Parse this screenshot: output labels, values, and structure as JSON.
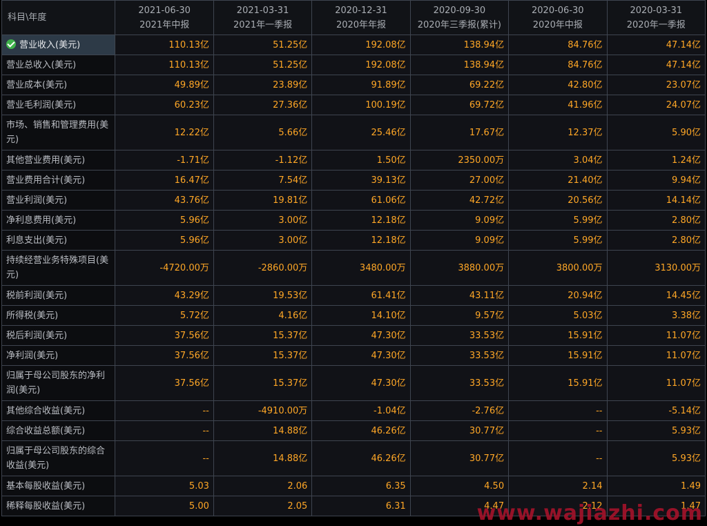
{
  "table": {
    "corner_label": "科目\\年度",
    "columns": [
      {
        "date": "2021-06-30",
        "period": "2021年中报"
      },
      {
        "date": "2021-03-31",
        "period": "2021年一季报"
      },
      {
        "date": "2020-12-31",
        "period": "2020年年报"
      },
      {
        "date": "2020-09-30",
        "period": "2020年三季报(累计)"
      },
      {
        "date": "2020-06-30",
        "period": "2020年中报"
      },
      {
        "date": "2020-03-31",
        "period": "2020年一季报"
      }
    ],
    "rows": [
      {
        "label": "营业收入(美元)",
        "values": [
          "110.13亿",
          "51.25亿",
          "192.08亿",
          "138.94亿",
          "84.76亿",
          "47.14亿"
        ]
      },
      {
        "label": "营业总收入(美元)",
        "values": [
          "110.13亿",
          "51.25亿",
          "192.08亿",
          "138.94亿",
          "84.76亿",
          "47.14亿"
        ]
      },
      {
        "label": "营业成本(美元)",
        "values": [
          "49.89亿",
          "23.89亿",
          "91.89亿",
          "69.22亿",
          "42.80亿",
          "23.07亿"
        ]
      },
      {
        "label": "营业毛利润(美元)",
        "values": [
          "60.23亿",
          "27.36亿",
          "100.19亿",
          "69.72亿",
          "41.96亿",
          "24.07亿"
        ]
      },
      {
        "label": "市场、销售和管理费用(美元)",
        "values": [
          "12.22亿",
          "5.66亿",
          "25.46亿",
          "17.67亿",
          "12.37亿",
          "5.90亿"
        ]
      },
      {
        "label": "其他营业费用(美元)",
        "values": [
          "-1.71亿",
          "-1.12亿",
          "1.50亿",
          "2350.00万",
          "3.04亿",
          "1.24亿"
        ]
      },
      {
        "label": "营业费用合计(美元)",
        "values": [
          "16.47亿",
          "7.54亿",
          "39.13亿",
          "27.00亿",
          "21.40亿",
          "9.94亿"
        ]
      },
      {
        "label": "营业利润(美元)",
        "values": [
          "43.76亿",
          "19.81亿",
          "61.06亿",
          "42.72亿",
          "20.56亿",
          "14.14亿"
        ]
      },
      {
        "label": "净利息费用(美元)",
        "values": [
          "5.96亿",
          "3.00亿",
          "12.18亿",
          "9.09亿",
          "5.99亿",
          "2.80亿"
        ]
      },
      {
        "label": "利息支出(美元)",
        "values": [
          "5.96亿",
          "3.00亿",
          "12.18亿",
          "9.09亿",
          "5.99亿",
          "2.80亿"
        ]
      },
      {
        "label": "持续经营业务特殊项目(美元)",
        "values": [
          "-4720.00万",
          "-2860.00万",
          "3480.00万",
          "3880.00万",
          "3800.00万",
          "3130.00万"
        ]
      },
      {
        "label": "税前利润(美元)",
        "values": [
          "43.29亿",
          "19.53亿",
          "61.41亿",
          "43.11亿",
          "20.94亿",
          "14.45亿"
        ]
      },
      {
        "label": "所得税(美元)",
        "values": [
          "5.72亿",
          "4.16亿",
          "14.10亿",
          "9.57亿",
          "5.03亿",
          "3.38亿"
        ]
      },
      {
        "label": "税后利润(美元)",
        "values": [
          "37.56亿",
          "15.37亿",
          "47.30亿",
          "33.53亿",
          "15.91亿",
          "11.07亿"
        ]
      },
      {
        "label": "净利润(美元)",
        "values": [
          "37.56亿",
          "15.37亿",
          "47.30亿",
          "33.53亿",
          "15.91亿",
          "11.07亿"
        ]
      },
      {
        "label": "归属于母公司股东的净利润(美元)",
        "values": [
          "37.56亿",
          "15.37亿",
          "47.30亿",
          "33.53亿",
          "15.91亿",
          "11.07亿"
        ]
      },
      {
        "label": "其他综合收益(美元)",
        "values": [
          "--",
          "-4910.00万",
          "-1.04亿",
          "-2.76亿",
          "--",
          "-5.14亿"
        ]
      },
      {
        "label": "综合收益总额(美元)",
        "values": [
          "--",
          "14.88亿",
          "46.26亿",
          "30.77亿",
          "--",
          "5.93亿"
        ]
      },
      {
        "label": "归属于母公司股东的综合收益(美元)",
        "values": [
          "--",
          "14.88亿",
          "46.26亿",
          "30.77亿",
          "--",
          "5.93亿"
        ]
      },
      {
        "label": "基本每股收益(美元)",
        "values": [
          "5.03",
          "2.06",
          "6.35",
          "4.50",
          "2.14",
          "1.49"
        ]
      },
      {
        "label": "稀释每股收益(美元)",
        "values": [
          "5.00",
          "2.05",
          "6.31",
          "4.47",
          "2.12",
          "1.47"
        ]
      }
    ]
  },
  "watermark": "www.wajiazhi.com",
  "colors": {
    "value_text": "#ffa726",
    "label_text": "#b9bcc2",
    "selected_row": "#2d3a47",
    "check": "#3fb24a"
  }
}
